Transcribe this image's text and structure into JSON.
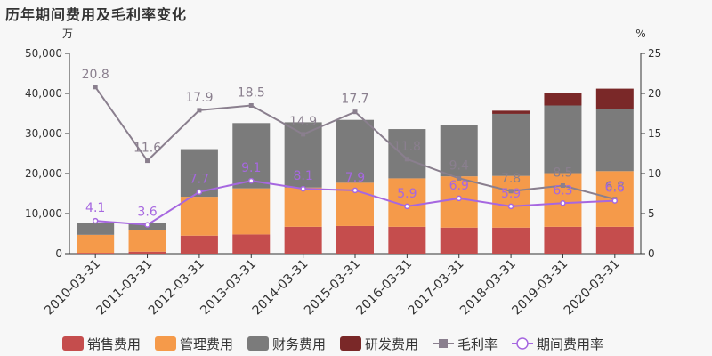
{
  "title": "历年期间费用及毛利率变化",
  "chart_data": {
    "type": "bar",
    "title": "历年期间费用及毛利率变化",
    "left_unit": "万",
    "right_unit": "%",
    "categories": [
      "2010-03-31",
      "2011-03-31",
      "2012-03-31",
      "2013-03-31",
      "2014-03-31",
      "2015-03-31",
      "2016-03-31",
      "2017-03-31",
      "2018-03-31",
      "2019-03-31",
      "2020-03-31"
    ],
    "y_left": {
      "min": 0,
      "max": 50000,
      "ticks": [
        "0",
        "10,000",
        "20,000",
        "30,000",
        "40,000",
        "50,000"
      ]
    },
    "y_right": {
      "min": 0,
      "max": 25,
      "ticks": [
        "0",
        "5",
        "10",
        "15",
        "20",
        "25"
      ]
    },
    "series": [
      {
        "name": "销售费用",
        "type": "bar",
        "color": "#c54d4d",
        "values": [
          200,
          500,
          4500,
          4800,
          6700,
          6900,
          6700,
          6500,
          6500,
          6700,
          6700
        ]
      },
      {
        "name": "管理费用",
        "type": "bar",
        "color": "#f59a4a",
        "values": [
          4500,
          5500,
          9700,
          11500,
          9800,
          10800,
          12100,
          12800,
          12900,
          13400,
          13900
        ]
      },
      {
        "name": "财务费用",
        "type": "bar",
        "color": "#7b7b7b",
        "values": [
          3000,
          1600,
          11900,
          16300,
          16300,
          15700,
          12300,
          12800,
          15500,
          16900,
          15600
        ]
      },
      {
        "name": "研发费用",
        "type": "bar",
        "color": "#7a2828",
        "values": [
          0,
          0,
          0,
          0,
          0,
          0,
          0,
          0,
          800,
          3200,
          5000
        ]
      },
      {
        "name": "毛利率",
        "type": "line",
        "color": "#8a7f8e",
        "marker": "square",
        "values": [
          20.8,
          11.6,
          17.9,
          18.5,
          14.9,
          17.7,
          11.8,
          9.4,
          7.8,
          8.5,
          6.8
        ]
      },
      {
        "name": "期间费用率",
        "type": "line",
        "color": "#a667e0",
        "marker": "circle",
        "values": [
          4.1,
          3.6,
          7.7,
          9.1,
          8.1,
          7.9,
          5.9,
          6.9,
          5.9,
          6.3,
          6.6
        ]
      }
    ],
    "labels": {
      "毛利率": [
        "20.8",
        "11.6",
        "17.9",
        "18.5",
        "14.9",
        "17.7",
        "11.8",
        "9.4",
        "7.8",
        "8.5",
        "6.8"
      ],
      "期间费用率": [
        "4.1",
        "3.6",
        "7.7",
        "9.1",
        "8.1",
        "7.9",
        "5.9",
        "6.9",
        "5.9",
        "6.3",
        "6.6"
      ]
    },
    "legend_position": "bottom",
    "grid": false
  }
}
